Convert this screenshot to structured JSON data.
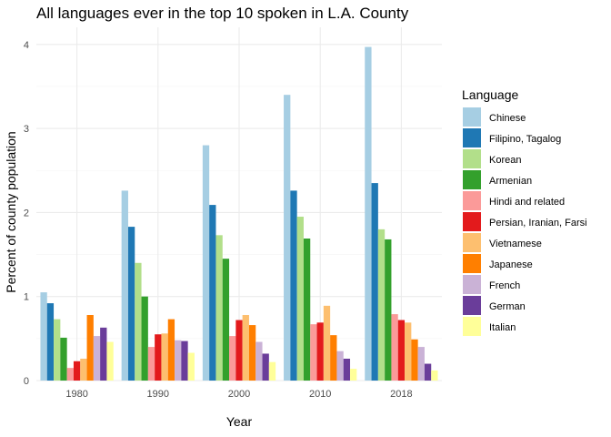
{
  "chart_data": {
    "type": "bar",
    "title": "All languages ever in the top 10 spoken in L.A. County",
    "xlabel": "Year",
    "ylabel": "Percent of county population",
    "categories": [
      "1980",
      "1990",
      "2000",
      "2010",
      "2018"
    ],
    "ylim": [
      0,
      4.2
    ],
    "yticks": [
      0,
      1,
      2,
      3,
      4
    ],
    "grid": true,
    "legend": {
      "title": "Language",
      "position": "right"
    },
    "series": [
      {
        "name": "Chinese",
        "color": "#A6CEE3",
        "values": [
          1.05,
          2.26,
          2.8,
          3.4,
          3.97
        ]
      },
      {
        "name": "Filipino, Tagalog",
        "color": "#1F78B4",
        "values": [
          0.92,
          1.83,
          2.09,
          2.26,
          2.35
        ]
      },
      {
        "name": "Korean",
        "color": "#B2DF8A",
        "values": [
          0.73,
          1.4,
          1.73,
          1.95,
          1.8
        ]
      },
      {
        "name": "Armenian",
        "color": "#33A02C",
        "values": [
          0.51,
          1.0,
          1.45,
          1.69,
          1.68
        ]
      },
      {
        "name": "Hindi and related",
        "color": "#FB9A99",
        "values": [
          0.15,
          0.4,
          0.53,
          0.67,
          0.79
        ]
      },
      {
        "name": "Persian, Iranian, Farsi",
        "color": "#E31A1C",
        "values": [
          0.23,
          0.55,
          0.72,
          0.69,
          0.72
        ]
      },
      {
        "name": "Vietnamese",
        "color": "#FDBF6F",
        "values": [
          0.26,
          0.56,
          0.78,
          0.89,
          0.69
        ]
      },
      {
        "name": "Japanese",
        "color": "#FF7F00",
        "values": [
          0.78,
          0.73,
          0.66,
          0.54,
          0.49
        ]
      },
      {
        "name": "French",
        "color": "#CAB2D6",
        "values": [
          0.53,
          0.48,
          0.46,
          0.35,
          0.4
        ]
      },
      {
        "name": "German",
        "color": "#6A3D9A",
        "values": [
          0.63,
          0.47,
          0.32,
          0.26,
          0.2
        ]
      },
      {
        "name": "Italian",
        "color": "#FFFF99",
        "values": [
          0.46,
          0.33,
          0.22,
          0.14,
          0.12
        ]
      }
    ]
  }
}
